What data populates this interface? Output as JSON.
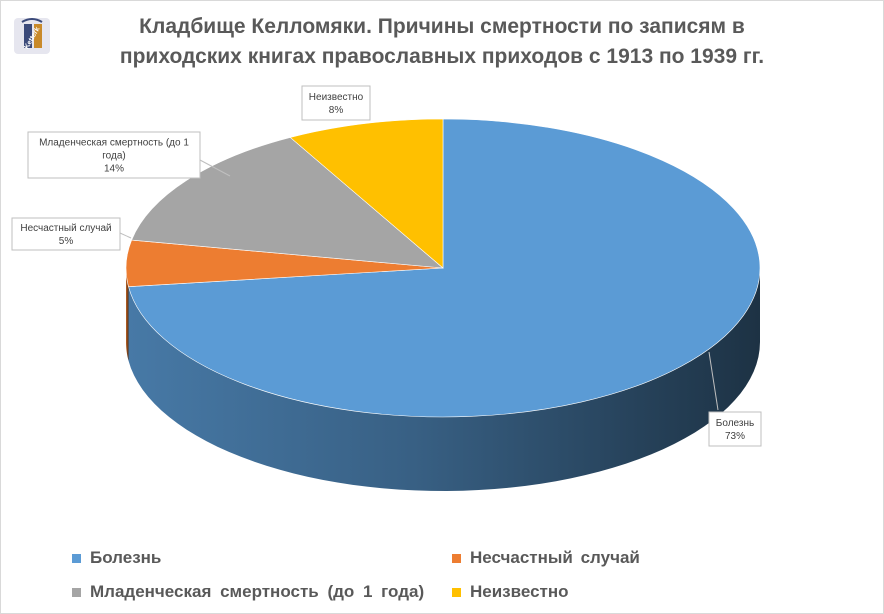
{
  "title_lines": [
    "Кладбище Келломяки. Причины смертности по записям в",
    "приходских книгах православных приходов с 1913 по 1939 гг."
  ],
  "chart_data": {
    "type": "pie",
    "three_d": true,
    "title": "Кладбище Келломяки. Причины смертности по записям в приходских книгах православных приходов с 1913 по 1939 гг.",
    "slices": [
      {
        "name": "Болезнь",
        "value": 73,
        "label": "Болезнь",
        "pct_label": "73%",
        "color": "#5b9bd5"
      },
      {
        "name": "Несчастный случай",
        "value": 5,
        "label": "Несчастный случай",
        "pct_label": "5%",
        "color": "#ed7d31"
      },
      {
        "name": "Младенческая смертность (до 1 года)",
        "value": 14,
        "label": "Младенческая смертность (до 1 года)",
        "pct_label": "14%",
        "color": "#a5a5a5"
      },
      {
        "name": "Неизвестно",
        "value": 8,
        "label": "Неизвестно",
        "pct_label": "8%",
        "color": "#ffc000"
      }
    ],
    "legend_position": "bottom",
    "legend": [
      "Болезнь",
      "Несчастный случай",
      "Младенческая смертность (до 1 года)",
      "Неизвестно"
    ]
  },
  "colors": {
    "title_text": "#595959",
    "label_border": "#bfbfbf",
    "label_text": "#404040"
  },
  "logo": {
    "icon": "museum-logo-icon",
    "text": "Ketterk"
  }
}
